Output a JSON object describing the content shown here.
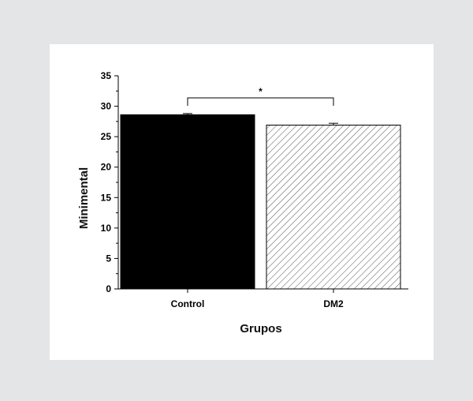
{
  "chart_data": {
    "type": "bar",
    "categories": [
      "Control",
      "DM2"
    ],
    "values": [
      28.6,
      26.9
    ],
    "errors": [
      0.2,
      0.3
    ],
    "ylabel": "Minimental",
    "xlabel": "Grupos",
    "ylim": [
      0,
      35
    ],
    "yticks": [
      0,
      5,
      10,
      15,
      20,
      25,
      30,
      35
    ],
    "significance": {
      "between": [
        "Control",
        "DM2"
      ],
      "label": "*"
    },
    "colors": {
      "Control": "#000000",
      "DM2": "hatched"
    },
    "grid": false
  }
}
